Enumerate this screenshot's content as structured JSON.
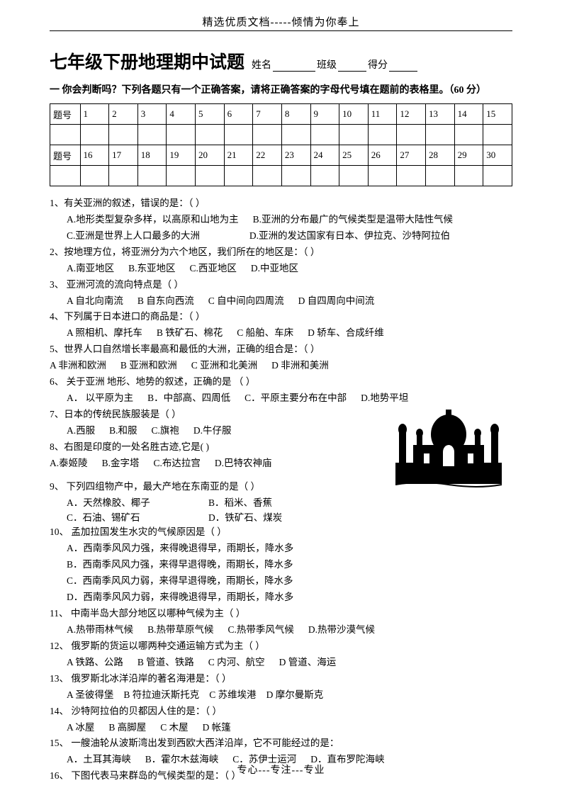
{
  "top_banner": "精选优质文档-----倾情为你奉上",
  "title": "七年级下册地理期中试题",
  "fields": {
    "name_label": "姓名",
    "class_label": "班级",
    "score_label": "得分"
  },
  "instructions": "一  你会判断吗？下列各题只有一个正确答案，请将正确答案的字母代号填在题前的表格里。（60 分）",
  "grid": {
    "row_label": "题号",
    "nums1": [
      "1",
      "2",
      "3",
      "4",
      "5",
      "6",
      "7",
      "8",
      "9",
      "10",
      "11",
      "12",
      "13",
      "14",
      "15"
    ],
    "nums2": [
      "16",
      "17",
      "18",
      "19",
      "20",
      "21",
      "22",
      "23",
      "24",
      "25",
      "26",
      "27",
      "28",
      "29",
      "30"
    ]
  },
  "questions": [
    {
      "n": "1、",
      "stem": "有关亚洲的叙述，错误的是：（  ）",
      "opts": [
        "A.地形类型复杂多样，以高原和山地为主",
        "B.亚洲的分布最广的气候类型是温带大陆性气候",
        "C.亚洲是世界上人口最多的大洲",
        "D.亚洲的发达国家有日本、伊拉克、沙特阿拉伯"
      ],
      "layout": "2x2"
    },
    {
      "n": "2、",
      "stem": "按地理方位，将亚洲分为六个地区，我们所在的地区是：（  ）",
      "opts": [
        "A.南亚地区",
        "B.东亚地区",
        "C.西亚地区",
        "D.中亚地区"
      ],
      "layout": "row"
    },
    {
      "n": "3、",
      "stem": " 亚洲河流的流向特点是（       ）",
      "opts": [
        "A 自北向南流",
        "B 自东向西流",
        "C 自中间向四周流",
        "D 自四周向中间流"
      ],
      "layout": "row"
    },
    {
      "n": "4、",
      "stem": "下列属于日本进口的商品是：（  ）",
      "opts": [
        "A 照相机、摩托车",
        "B 铁矿石、棉花",
        "C 船舶、车床",
        "D 轿车、合成纤维"
      ],
      "layout": "row"
    },
    {
      "n": "5、",
      "stem": "世界人口自然增长率最高和最低的大洲，正确的组合是：（   ）",
      "opts": [
        "A   非洲和欧洲",
        "B  亚洲和欧洲",
        "C  亚洲和北美洲",
        "D  非洲和美洲"
      ],
      "layout": "row-noindent"
    },
    {
      "n": "6、",
      "stem": " 关于亚洲  地形、地势的叙述，正确的是 （     ）",
      "opts": [
        "A．  以平原为主",
        "B．中部高、四周低",
        "C．平原主要分布在中部",
        "D.地势平坦"
      ],
      "layout": "row"
    },
    {
      "n": "7、",
      "stem": "日本的传统民族服装是（   ）",
      "opts": [
        "A.西服",
        "B.和服",
        "C.旗袍",
        "D.牛仔服"
      ],
      "layout": "row"
    },
    {
      "n": "8、",
      "stem": "右图是印度的一处名胜古迹,它是(     )",
      "opts": [
        "A.泰姬陵",
        "B.金字塔",
        "C.布达拉宫",
        "D.巴特农神庙"
      ],
      "layout": "row-noindent"
    },
    {
      "n": "9、",
      "stem": " 下列四组物产中，最大产地在东南亚的是（    ）",
      "opts": [
        "A．天然橡胶、椰子",
        "B．稻米、香蕉",
        "C．石油、锡矿石",
        "D．铁矿石、煤炭"
      ],
      "layout": "2col"
    },
    {
      "n": "10、",
      "stem": " 孟加拉国发生水灾的气候原因是（   ）",
      "opts": [
        "A．西南季风风力强，来得晚退得早，雨期长，降水多",
        "B．西南季风风力强，来得早退得晚，雨期长，降水多",
        "C．西南季风风力弱，来得早退得晚，雨期长，降水多",
        "D．西南季风风力弱，来得晚退得早，雨期长，降水多"
      ],
      "layout": "list"
    },
    {
      "n": "11、",
      "stem": " 中南半岛大部分地区以哪种气候为主（    ）",
      "opts": [
        "A.热带雨林气候",
        "B.热带草原气候",
        "C.热带季风气候",
        "D.热带沙漠气候"
      ],
      "layout": "row"
    },
    {
      "n": "12、",
      "stem": " 俄罗斯的货运以哪两种交通运输方式为主（   ）",
      "opts": [
        "A 铁路、公路",
        "B 管道、铁路",
        "C 内河、航空",
        "D 管道、海运"
      ],
      "layout": "row"
    },
    {
      "n": "13、",
      "stem": " 俄罗斯北冰洋沿岸的著名海港是：（  ）",
      "opts": [
        "A 圣彼得堡",
        "B 符拉迪沃斯托克",
        "C  苏维埃港",
        "D 摩尔曼斯克"
      ],
      "layout": "row-tight"
    },
    {
      "n": "14、",
      "stem": " 沙特阿拉伯的贝都因人住的是：（    ）",
      "opts": [
        "A  冰屋",
        "B 高脚屋",
        "C 木屋",
        "D 帐篷"
      ],
      "layout": "row"
    },
    {
      "n": "15、",
      "stem": " 一艘油轮从波斯湾出发到西欧大西洋沿岸，它不可能经过的是：",
      "opts": [
        "A．土耳其海峡",
        "B．霍尔木兹海峡",
        "C．苏伊士运河",
        "D．直布罗陀海峡"
      ],
      "layout": "row"
    },
    {
      "n": "16、",
      "stem": " 下图代表马来群岛的气候类型的是：（  ）",
      "opts": [],
      "layout": "none"
    }
  ],
  "footer": "专心---专注---专业"
}
